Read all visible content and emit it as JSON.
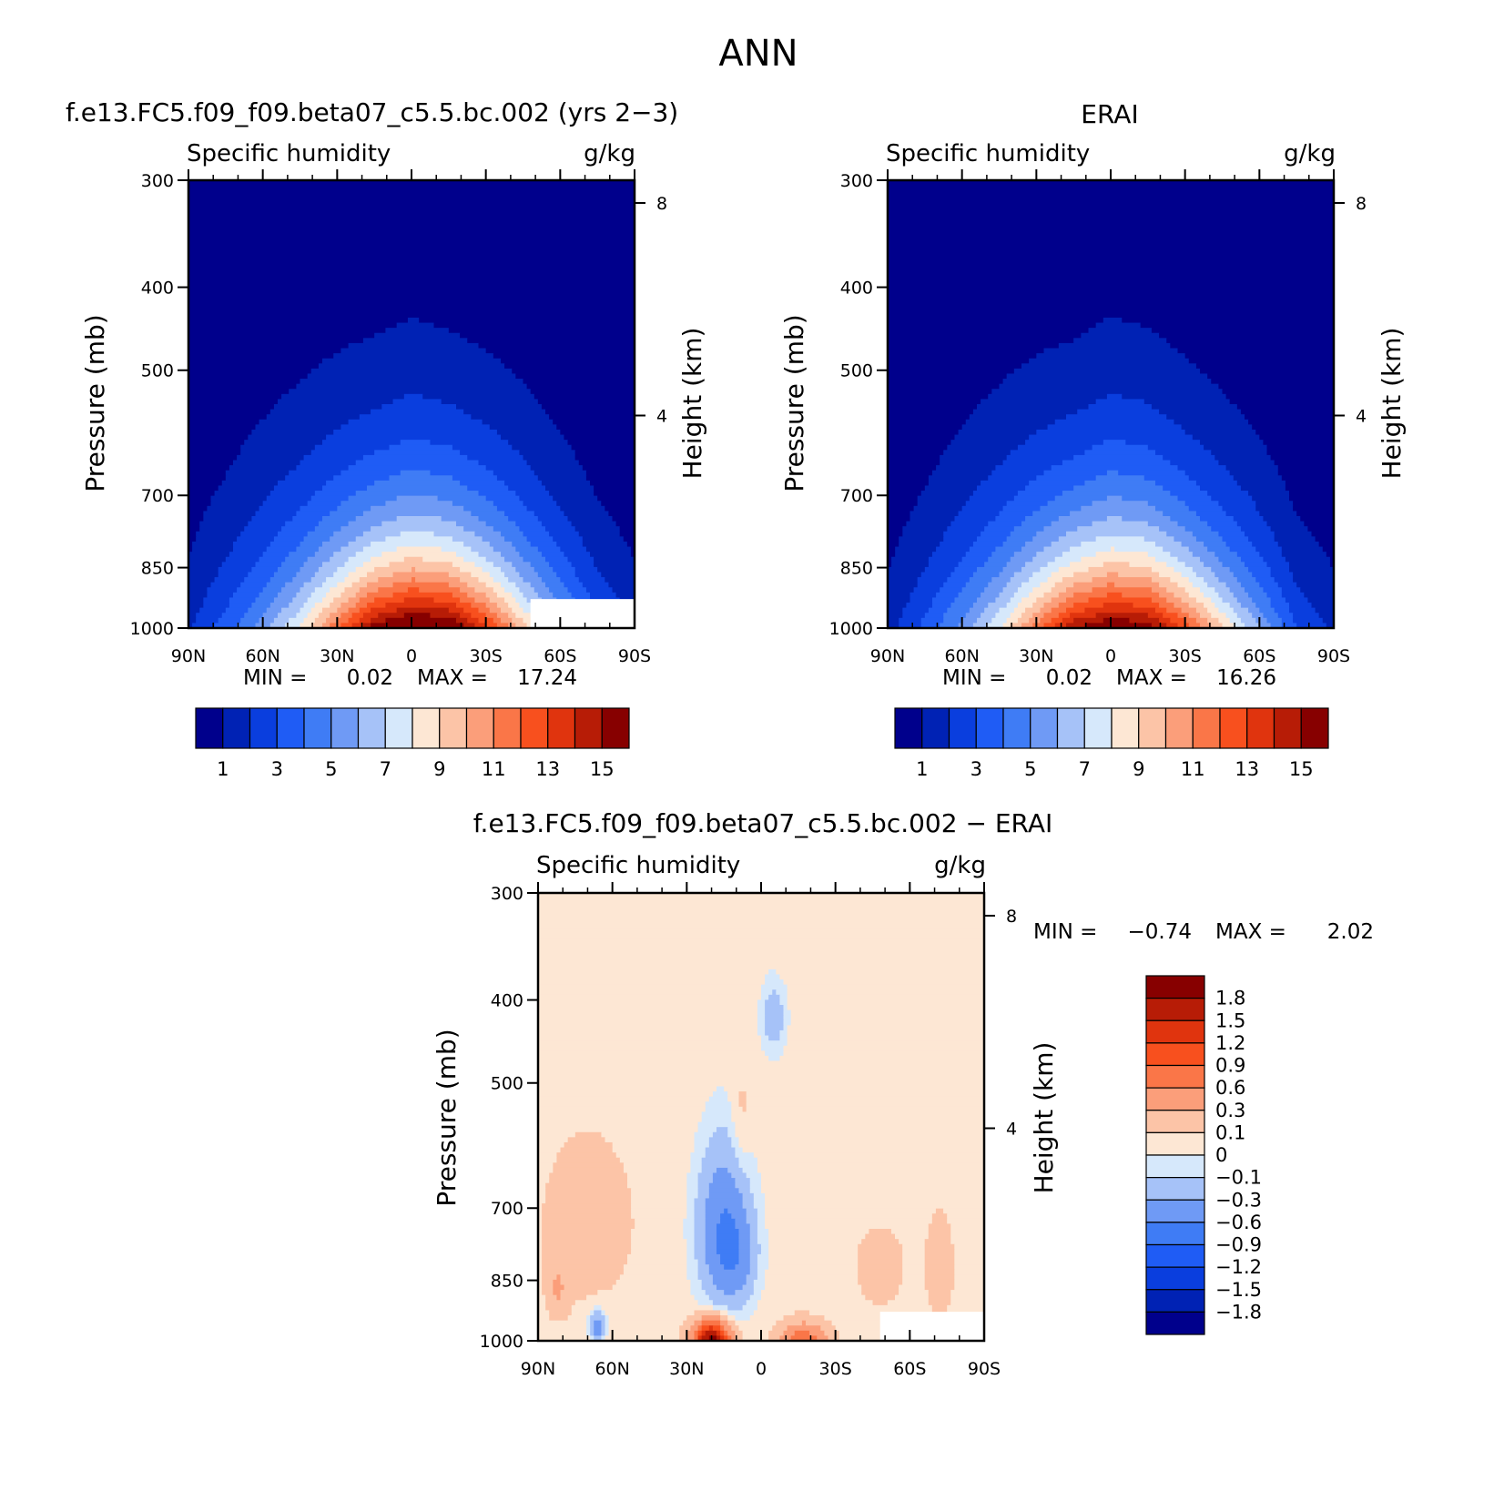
{
  "figure": {
    "title": "ANN",
    "panel_titles": {
      "model": "f.e13.FC5.f09_f09.beta07_c5.5.bc.002 (yrs 2−3)",
      "obs": "ERAI",
      "diff": "f.e13.FC5.f09_f09.beta07_c5.5.bc.002 − ERAI"
    },
    "variable": "Specific humidity",
    "units": "g/kg",
    "left_axis_label": "Pressure (mb)",
    "right_axis_label": "Height (km)",
    "min_label": "MIN =",
    "max_label": "MAX ="
  },
  "chart_data": [
    {
      "type": "heatmap",
      "panel": "model",
      "title": "f.e13.FC5.f09_f09.beta07_c5.5.bc.002 (yrs 2−3)",
      "subtitle_left": "Specific humidity",
      "subtitle_right": "g/kg",
      "xlabel": "",
      "ylabel": "Pressure (mb)",
      "y2label": "Height (km)",
      "x_ticks": [
        "90N",
        "60N",
        "30N",
        "0",
        "30S",
        "60S",
        "90S"
      ],
      "y_ticks": [
        300,
        400,
        500,
        700,
        850,
        1000
      ],
      "y2_ticks": [
        8,
        4
      ],
      "xlim": [
        90,
        -90
      ],
      "ylim": [
        1000,
        300
      ],
      "y_scale": "log",
      "min": "0.02",
      "max": "17.24",
      "colorbar_levels": [
        1,
        2,
        3,
        4,
        5,
        6,
        7,
        8,
        9,
        10,
        11,
        12,
        13,
        14,
        15
      ],
      "colorbar_labels": [
        "1",
        "3",
        "5",
        "7",
        "9",
        "11",
        "13",
        "15"
      ],
      "colors": [
        "#00008c",
        "#0022b4",
        "#0a3ede",
        "#1f5cf5",
        "#3f7cf5",
        "#6f9af5",
        "#a6c2f8",
        "#d6e8fb",
        "#fde7d4",
        "#fcc4a7",
        "#fb9e7a",
        "#fa7648",
        "#f8501e",
        "#e0340e",
        "#b71c06",
        "#870000"
      ],
      "profile": {
        "lat": [
          90,
          75,
          60,
          45,
          30,
          15,
          0,
          -15,
          -30,
          -45,
          -60,
          -75,
          -90
        ],
        "surface_q": [
          1.8,
          3.5,
          5.5,
          8.2,
          11.8,
          15.6,
          17.2,
          16.6,
          13.5,
          9.5,
          6.2,
          3.4,
          2.0
        ],
        "scale_height_km": [
          2.3,
          2.3,
          2.3,
          2.2,
          2.1,
          2.0,
          2.05,
          2.0,
          2.0,
          2.05,
          2.0,
          2.0,
          1.9
        ]
      },
      "missing_region": {
        "lat": [
          -48,
          -90
        ],
        "pressure": [
          925,
          1000
        ]
      }
    },
    {
      "type": "heatmap",
      "panel": "obs",
      "title": "ERAI",
      "subtitle_left": "Specific humidity",
      "subtitle_right": "g/kg",
      "xlabel": "",
      "ylabel": "Pressure (mb)",
      "y2label": "Height (km)",
      "x_ticks": [
        "90N",
        "60N",
        "30N",
        "0",
        "30S",
        "60S",
        "90S"
      ],
      "y_ticks": [
        300,
        400,
        500,
        700,
        850,
        1000
      ],
      "y2_ticks": [
        8,
        4
      ],
      "xlim": [
        90,
        -90
      ],
      "ylim": [
        1000,
        300
      ],
      "y_scale": "log",
      "min": "0.02",
      "max": "16.26",
      "colorbar_levels": [
        1,
        2,
        3,
        4,
        5,
        6,
        7,
        8,
        9,
        10,
        11,
        12,
        13,
        14,
        15
      ],
      "colorbar_labels": [
        "1",
        "3",
        "5",
        "7",
        "9",
        "11",
        "13",
        "15"
      ],
      "colors": [
        "#00008c",
        "#0022b4",
        "#0a3ede",
        "#1f5cf5",
        "#3f7cf5",
        "#6f9af5",
        "#a6c2f8",
        "#d6e8fb",
        "#fde7d4",
        "#fcc4a7",
        "#fb9e7a",
        "#fa7648",
        "#f8501e",
        "#e0340e",
        "#b71c06",
        "#870000"
      ],
      "profile": {
        "lat": [
          90,
          75,
          60,
          45,
          30,
          15,
          0,
          -15,
          -30,
          -45,
          -60,
          -75,
          -90
        ],
        "surface_q": [
          1.6,
          3.3,
          5.4,
          8.0,
          11.5,
          15.0,
          16.3,
          15.8,
          12.8,
          9.2,
          6.0,
          3.0,
          1.8
        ],
        "scale_height_km": [
          2.2,
          2.2,
          2.25,
          2.2,
          2.1,
          2.0,
          2.1,
          2.05,
          2.0,
          2.0,
          2.0,
          1.95,
          1.9
        ]
      },
      "missing_region": null
    },
    {
      "type": "heatmap",
      "panel": "diff",
      "title": "f.e13.FC5.f09_f09.beta07_c5.5.bc.002 − ERAI",
      "subtitle_left": "Specific humidity",
      "subtitle_right": "g/kg",
      "xlabel": "",
      "ylabel": "Pressure (mb)",
      "y2label": "Height (km)",
      "x_ticks": [
        "90N",
        "60N",
        "30N",
        "0",
        "30S",
        "60S",
        "90S"
      ],
      "y_ticks": [
        300,
        400,
        500,
        700,
        850,
        1000
      ],
      "y2_ticks": [
        8,
        4
      ],
      "xlim": [
        90,
        -90
      ],
      "ylim": [
        1000,
        300
      ],
      "y_scale": "log",
      "min": "−0.74",
      "max": "2.02",
      "colorbar_levels": [
        -1.8,
        -1.5,
        -1.2,
        -0.9,
        -0.6,
        -0.3,
        -0.1,
        0,
        0.1,
        0.3,
        0.6,
        0.9,
        1.2,
        1.5,
        1.8
      ],
      "colorbar_labels": [
        "1.8",
        "1.5",
        "1.2",
        "0.9",
        "0.6",
        "0.3",
        "0.1",
        "0",
        "−0.1",
        "−0.3",
        "−0.6",
        "−0.9",
        "−1.2",
        "−1.5",
        "−1.8"
      ],
      "colors": [
        "#00008c",
        "#0022b4",
        "#0a3ede",
        "#1f5cf5",
        "#3f7cf5",
        "#6f9af5",
        "#a6c2f8",
        "#d6e8fb",
        "#fde7d4",
        "#fcc4a7",
        "#fb9e7a",
        "#fa7648",
        "#f8501e",
        "#e0340e",
        "#b71c06",
        "#870000"
      ],
      "features": [
        {
          "lat": 15,
          "p": 740,
          "dlat": 10,
          "dp": 150,
          "amp": -0.62
        },
        {
          "lat": 10,
          "p": 800,
          "dlat": 8,
          "dp": 90,
          "amp": -0.3
        },
        {
          "lat": -5,
          "p": 420,
          "dlat": 5,
          "dp": 40,
          "amp": -0.25
        },
        {
          "lat": 20,
          "p": 1000,
          "dlat": 7,
          "dp": 50,
          "amp": 1.9
        },
        {
          "lat": -17,
          "p": 1000,
          "dlat": 9,
          "dp": 45,
          "amp": 0.75
        },
        {
          "lat": 66,
          "p": 960,
          "dlat": 3,
          "dp": 40,
          "amp": -0.5
        },
        {
          "lat": 82,
          "p": 870,
          "dlat": 4,
          "dp": 60,
          "amp": 0.25
        },
        {
          "lat": 70,
          "p": 730,
          "dlat": 18,
          "dp": 160,
          "amp": 0.14
        },
        {
          "lat": 8,
          "p": 560,
          "dlat": 4,
          "dp": 90,
          "amp": 0.12
        },
        {
          "lat": -48,
          "p": 820,
          "dlat": 8,
          "dp": 70,
          "amp": 0.22
        },
        {
          "lat": -72,
          "p": 820,
          "dlat": 5,
          "dp": 100,
          "amp": 0.2
        }
      ],
      "missing_region": {
        "lat": [
          -48,
          -90
        ],
        "pressure": [
          925,
          1000
        ]
      }
    }
  ]
}
